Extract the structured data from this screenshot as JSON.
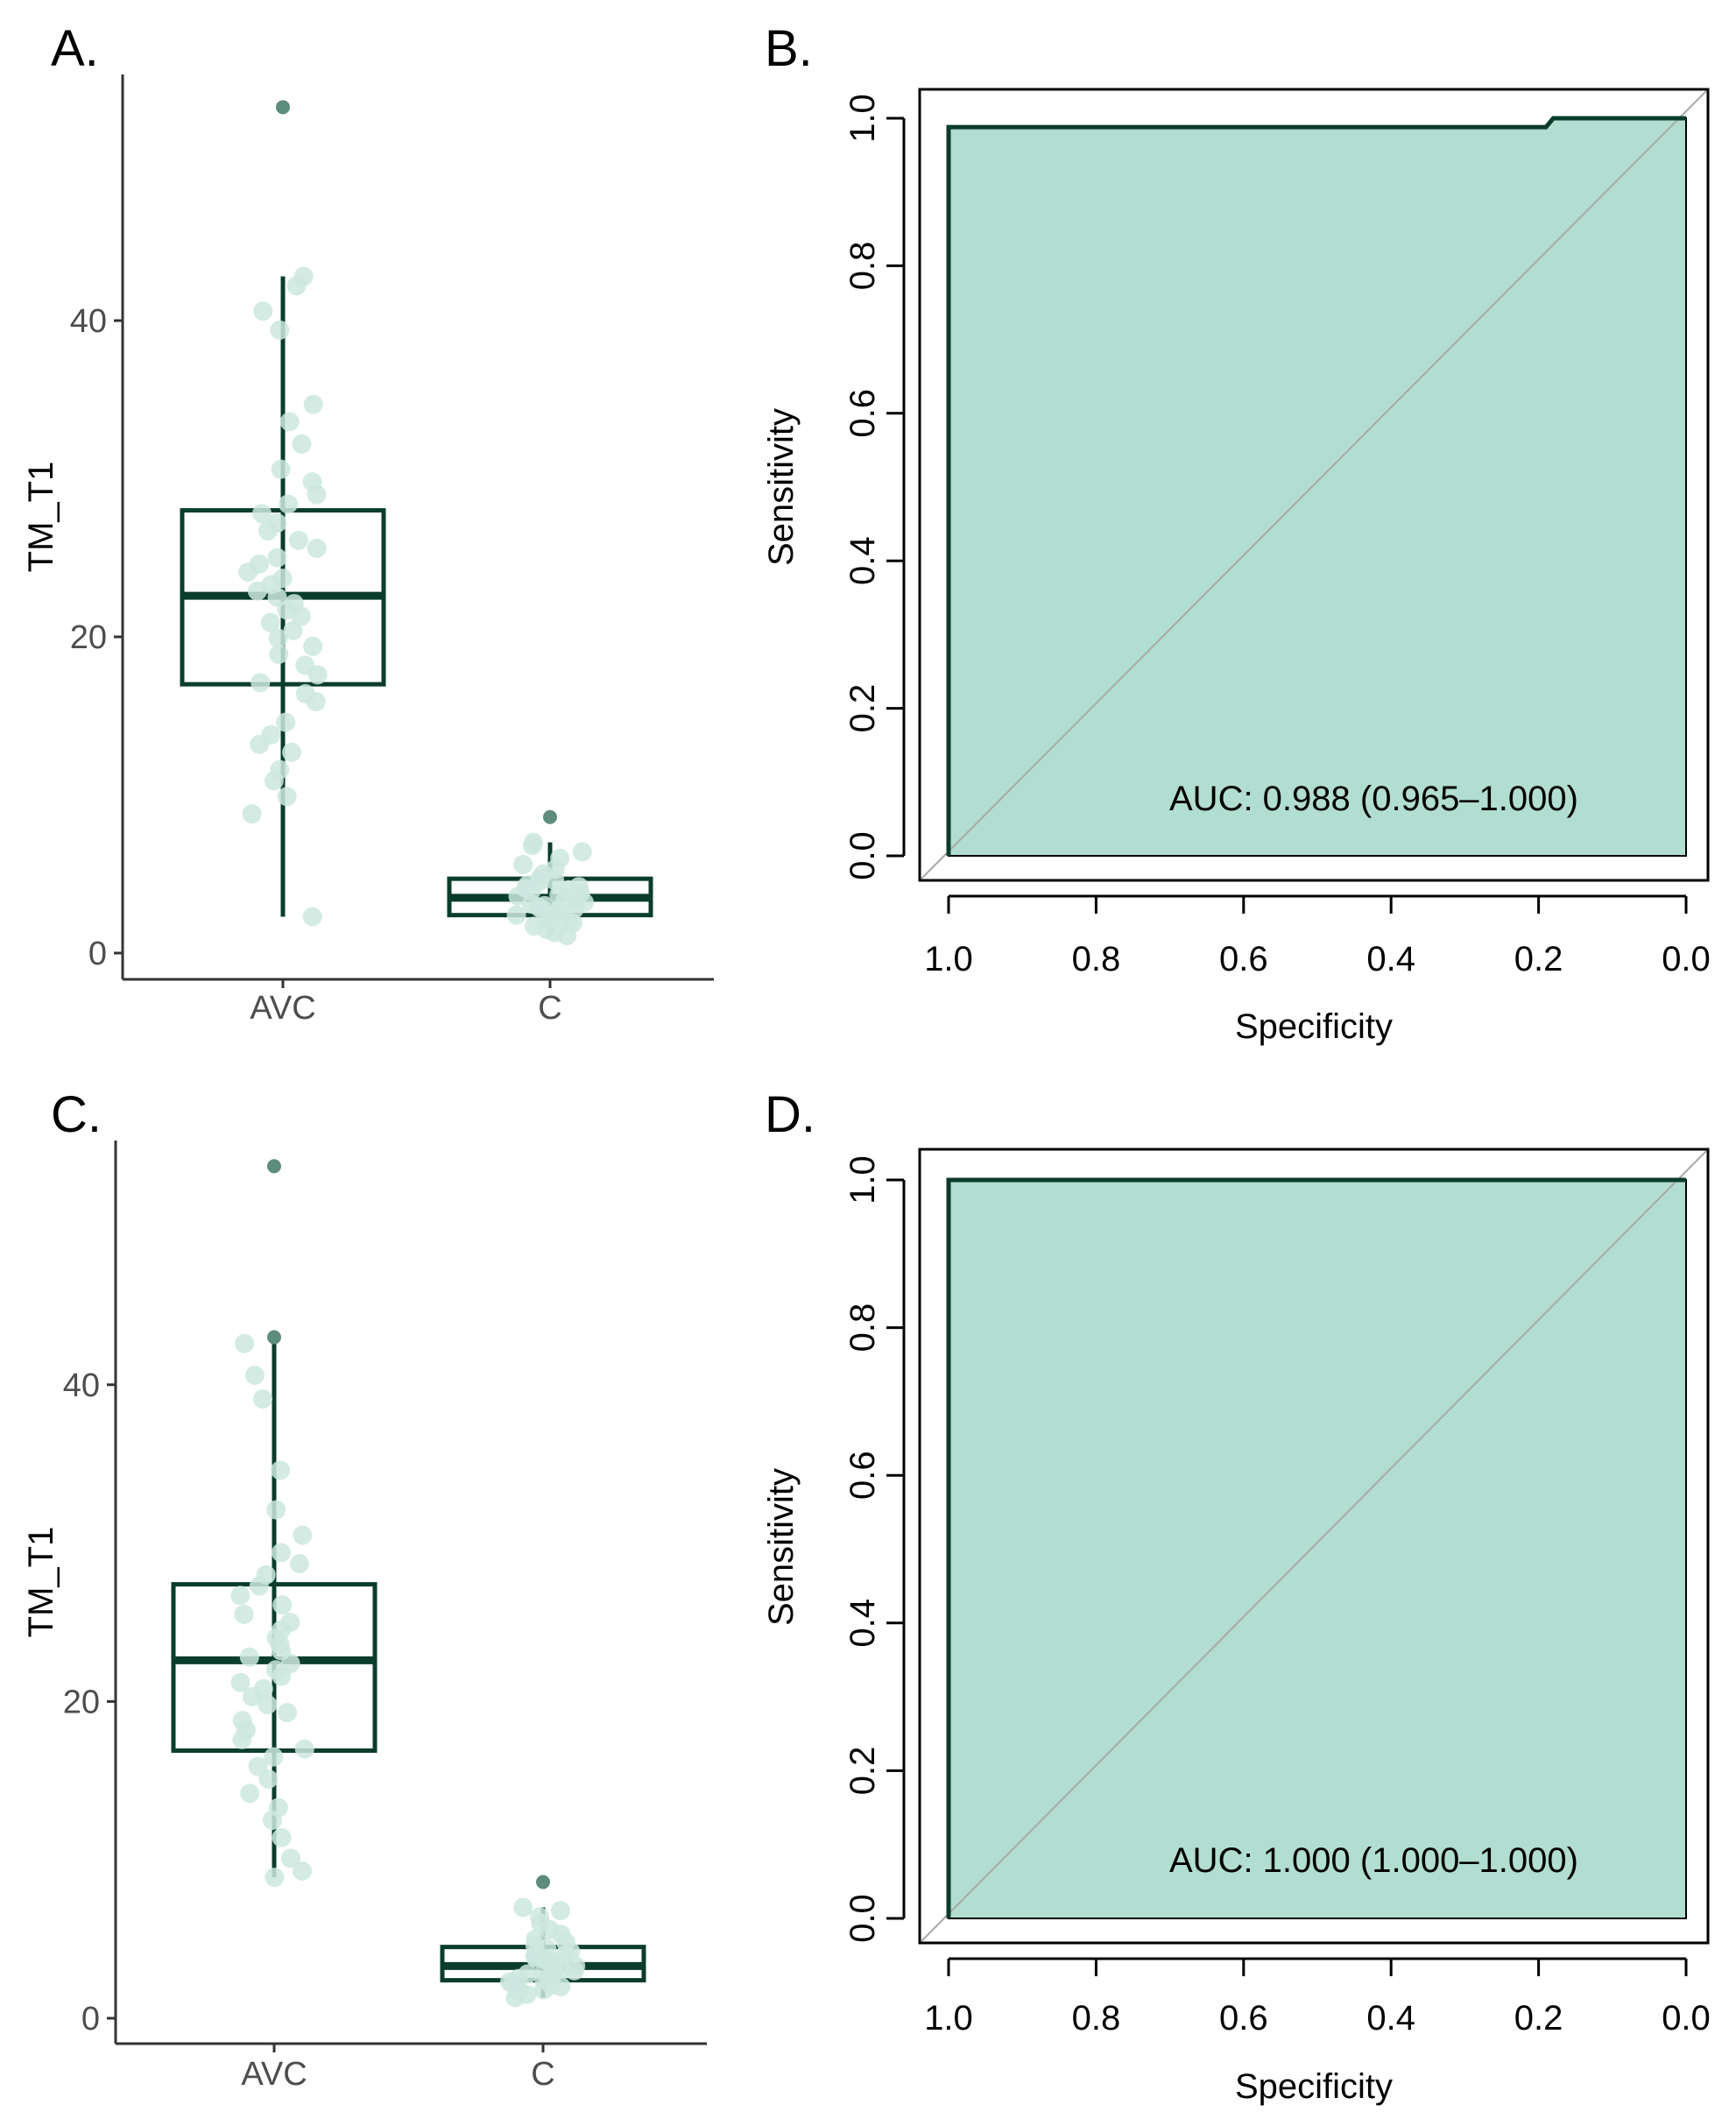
{
  "colors": {
    "dark_green": "#0b3d2c",
    "jitter_point": "#cde8df",
    "outlier_point": "#5e8c7c",
    "roc_fill": "#b2ddd1",
    "diagonal": "#a9a9a9",
    "axis_gray": "#333333"
  },
  "chart_data": [
    {
      "panel": "A.",
      "type": "box",
      "ylabel": "TM_T1",
      "xlabel": "",
      "ylim": [
        0,
        55
      ],
      "yticks": [
        "0",
        "20",
        "40"
      ],
      "categories": [
        "AVC",
        "C"
      ],
      "boxes": [
        {
          "category": "AVC",
          "min": 2.3,
          "q1": 17.0,
          "median": 22.6,
          "q3": 28.0,
          "max": 42.8,
          "outliers": [
            53.5
          ],
          "points": [
            2.3,
            8.8,
            9.9,
            10.9,
            11.6,
            12.7,
            13.2,
            13.8,
            14.6,
            15.9,
            16.4,
            17.1,
            17.6,
            18.2,
            18.9,
            19.4,
            19.9,
            20.4,
            20.9,
            21.3,
            21.7,
            22.1,
            22.5,
            22.9,
            23.3,
            23.7,
            24.1,
            24.6,
            25.0,
            25.6,
            26.1,
            26.7,
            27.2,
            27.8,
            28.4,
            29.0,
            29.8,
            30.6,
            32.2,
            33.6,
            34.7,
            39.4,
            40.6,
            42.2,
            42.8
          ]
        },
        {
          "category": "C",
          "min": 1.1,
          "q1": 2.4,
          "median": 3.5,
          "q3": 4.7,
          "max": 7.0,
          "outliers": [
            8.6
          ],
          "points": [
            1.1,
            1.3,
            1.5,
            1.7,
            1.9,
            2.0,
            2.1,
            2.2,
            2.3,
            2.4,
            2.5,
            2.6,
            2.7,
            2.8,
            2.9,
            3.0,
            3.1,
            3.2,
            3.3,
            3.4,
            3.5,
            3.6,
            3.7,
            3.8,
            3.9,
            4.0,
            4.1,
            4.2,
            4.3,
            4.5,
            4.6,
            4.8,
            5.0,
            5.3,
            5.6,
            6.0,
            6.4,
            6.8,
            7.0
          ]
        }
      ]
    },
    {
      "panel": "B.",
      "type": "line",
      "subtype": "roc",
      "xlabel": "Specificity",
      "ylabel": "Sensitivity",
      "xlim": [
        1.0,
        0.0
      ],
      "ylim": [
        0.0,
        1.0
      ],
      "xticks": [
        "1.0",
        "0.8",
        "0.6",
        "0.4",
        "0.2",
        "0.0"
      ],
      "yticks": [
        "0.0",
        "0.2",
        "0.4",
        "0.6",
        "0.8",
        "1.0"
      ],
      "points": [
        [
          1.0,
          0.0
        ],
        [
          1.0,
          0.988
        ],
        [
          0.19,
          0.988
        ],
        [
          0.18,
          1.0
        ],
        [
          0.0,
          1.0
        ]
      ],
      "annotation": "AUC: 0.988 (0.965–1.000)"
    },
    {
      "panel": "C.",
      "type": "box",
      "ylabel": "TM_T1",
      "xlabel": "",
      "ylim": [
        0,
        55
      ],
      "yticks": [
        "0",
        "20",
        "40"
      ],
      "categories": [
        "AVC",
        "C"
      ],
      "boxes": [
        {
          "category": "AVC",
          "min": 8.9,
          "q1": 16.9,
          "median": 22.6,
          "q3": 27.4,
          "max": 42.6,
          "outliers": [
            53.8,
            43.0
          ],
          "points": [
            8.9,
            9.3,
            10.1,
            11.4,
            12.5,
            13.3,
            14.2,
            15.1,
            15.9,
            16.5,
            17.0,
            17.6,
            18.2,
            18.8,
            19.3,
            19.8,
            20.3,
            20.8,
            21.2,
            21.6,
            22.0,
            22.4,
            22.8,
            23.2,
            23.6,
            24.0,
            24.5,
            25.0,
            25.5,
            26.1,
            26.7,
            27.3,
            28.0,
            28.7,
            29.4,
            30.5,
            32.1,
            34.6,
            39.1,
            40.6,
            42.6
          ]
        },
        {
          "category": "C",
          "min": 1.3,
          "q1": 2.4,
          "median": 3.3,
          "q3": 4.5,
          "max": 7.0,
          "outliers": [
            8.6
          ],
          "points": [
            1.3,
            1.5,
            1.7,
            1.8,
            2.0,
            2.1,
            2.2,
            2.3,
            2.4,
            2.5,
            2.6,
            2.7,
            2.8,
            2.9,
            3.0,
            3.1,
            3.2,
            3.3,
            3.4,
            3.5,
            3.6,
            3.7,
            3.8,
            3.9,
            4.0,
            4.1,
            4.2,
            4.4,
            4.6,
            4.8,
            5.0,
            5.3,
            5.6,
            6.0,
            6.4,
            6.8,
            7.0
          ]
        }
      ]
    },
    {
      "panel": "D.",
      "type": "line",
      "subtype": "roc",
      "xlabel": "Specificity",
      "ylabel": "Sensitivity",
      "xlim": [
        1.0,
        0.0
      ],
      "ylim": [
        0.0,
        1.0
      ],
      "xticks": [
        "1.0",
        "0.8",
        "0.6",
        "0.4",
        "0.2",
        "0.0"
      ],
      "yticks": [
        "0.0",
        "0.2",
        "0.4",
        "0.6",
        "0.8",
        "1.0"
      ],
      "points": [
        [
          1.0,
          0.0
        ],
        [
          1.0,
          1.0
        ],
        [
          0.0,
          1.0
        ]
      ],
      "annotation": "AUC: 1.000 (1.000–1.000)"
    }
  ]
}
